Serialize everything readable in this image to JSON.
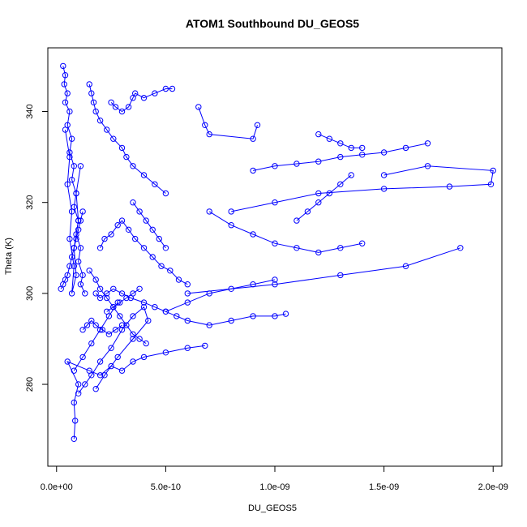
{
  "chart_data": {
    "type": "scatter",
    "title": "ATOM1 Southbound DU_GEOS5",
    "xlabel": "DU_GEOS5",
    "ylabel": "Theta (K)",
    "xlim": [
      -4e-11,
      2.04e-09
    ],
    "ylim": [
      262,
      354
    ],
    "x_ticks": [
      {
        "value": 0,
        "label": "0.0e+00"
      },
      {
        "value": 5e-10,
        "label": "5.0e-10"
      },
      {
        "value": 1e-09,
        "label": "1.0e-09"
      },
      {
        "value": 1.5e-09,
        "label": "1.5e-09"
      },
      {
        "value": 2e-09,
        "label": "2.0e-09"
      }
    ],
    "y_ticks": [
      {
        "value": 280,
        "label": "280"
      },
      {
        "value": 300,
        "label": "300"
      },
      {
        "value": 320,
        "label": "320"
      },
      {
        "value": 340,
        "label": "340"
      }
    ],
    "series_color": "#0000ff",
    "grid": false,
    "series": [
      {
        "x": [
          8e-11,
          8.5e-11,
          8e-11,
          1e-10,
          5e-11,
          1.5e-10,
          2e-10,
          2.5e-10,
          3e-10,
          3.5e-10,
          4e-10,
          5e-10,
          6e-10,
          6.8e-10
        ],
        "y": [
          268,
          272,
          276,
          280,
          285,
          283,
          282,
          284,
          283,
          285,
          286,
          287,
          288,
          288.5
        ]
      },
      {
        "x": [
          1e-10,
          1.3e-10,
          1.6e-10,
          2e-10,
          2.5e-10,
          3e-10,
          3.5e-10,
          4e-10,
          4.2e-10,
          3.5e-10,
          2.8e-10,
          2.2e-10,
          1.8e-10
        ],
        "y": [
          278,
          280,
          282,
          285,
          288,
          292,
          295,
          297,
          294,
          290,
          286,
          282,
          279
        ]
      },
      {
        "x": [
          1.8e-10,
          2e-10,
          2.3e-10,
          2.6e-10,
          3e-10,
          3.4e-10,
          4e-10,
          4.5e-10,
          5e-10,
          5.5e-10,
          6e-10,
          7e-10,
          8e-10,
          9e-10,
          1e-09,
          1.05e-09
        ],
        "y": [
          300,
          299,
          300,
          301,
          300,
          299,
          298,
          297,
          296,
          295,
          294,
          293,
          294,
          295,
          295,
          295.5
        ]
      },
      {
        "x": [
          6e-10,
          1e-09,
          1.3e-09,
          1.6e-09,
          1.85e-09
        ],
        "y": [
          300,
          302,
          304,
          306,
          310
        ]
      },
      {
        "x": [
          8e-10,
          1e-09,
          1.2e-09,
          1.5e-09,
          1.8e-09,
          1.99e-09,
          2e-09,
          1.7e-09,
          1.5e-09
        ],
        "y": [
          318,
          320,
          322,
          323,
          323.5,
          324,
          327,
          328,
          326
        ]
      },
      {
        "x": [
          9e-10,
          1e-09,
          1.1e-09,
          1.2e-09,
          1.3e-09,
          1.4e-09,
          1.5e-09,
          1.6e-09,
          1.7e-09
        ],
        "y": [
          327,
          328,
          328.5,
          329,
          330,
          330.5,
          331,
          332,
          333
        ]
      },
      {
        "x": [
          1.2e-09,
          1.25e-09,
          1.3e-09,
          1.35e-09,
          1.4e-09
        ],
        "y": [
          335,
          334,
          333,
          332,
          332
        ]
      },
      {
        "x": [
          6.5e-10,
          6.8e-10,
          7e-10,
          9e-10,
          9.2e-10
        ],
        "y": [
          341,
          337,
          335,
          334,
          337
        ]
      },
      {
        "x": [
          1.5e-10,
          1.6e-10,
          1.7e-10,
          1.8e-10,
          2e-10,
          2.3e-10,
          2.6e-10,
          3e-10,
          3.2e-10,
          3.5e-10,
          4e-10,
          4.5e-10,
          5e-10
        ],
        "y": [
          346,
          344,
          342,
          340,
          338,
          336,
          334,
          332,
          330,
          328,
          326,
          324,
          322
        ]
      },
      {
        "x": [
          2.5e-10,
          2.7e-10,
          3e-10,
          3.3e-10,
          3.5e-10,
          3.6e-10,
          4e-10,
          4.5e-10,
          5e-10,
          5.3e-10
        ],
        "y": [
          342,
          341,
          340,
          341,
          343,
          344,
          343,
          344,
          345,
          345
        ]
      },
      {
        "x": [
          3e-11,
          4e-11,
          3.5e-11,
          5e-11,
          4e-11,
          6e-11,
          5e-11,
          7e-11,
          6e-11,
          8e-11,
          7e-11,
          9e-11,
          8e-11,
          1e-10,
          9e-11,
          1.1e-10,
          1e-10,
          1.2e-10,
          1.1e-10,
          1.3e-10
        ],
        "y": [
          350,
          348,
          346,
          344,
          342,
          340,
          337,
          334,
          331,
          328,
          325,
          322,
          319,
          316,
          313,
          310,
          307,
          304,
          302,
          300
        ]
      },
      {
        "x": [
          2e-11,
          3e-11,
          4e-11,
          5e-11,
          6e-11,
          7e-11,
          8e-11,
          9e-11,
          1e-10,
          1.1e-10,
          1.2e-10
        ],
        "y": [
          301,
          302,
          303,
          304,
          306,
          308,
          310,
          312,
          314,
          316,
          318
        ]
      },
      {
        "x": [
          4e-11,
          6e-11,
          5e-11,
          7e-11,
          6e-11,
          8e-11,
          7e-11,
          9e-11,
          8e-11,
          1e-10,
          9e-11,
          1.1e-10
        ],
        "y": [
          336,
          330,
          324,
          318,
          312,
          306,
          300,
          304,
          310,
          316,
          322,
          328
        ]
      },
      {
        "x": [
          2e-10,
          2.2e-10,
          2.5e-10,
          2.8e-10,
          3e-10,
          3.3e-10,
          3.6e-10,
          4e-10,
          4.4e-10,
          4.8e-10,
          5.2e-10,
          5.6e-10,
          6e-10
        ],
        "y": [
          310,
          312,
          313,
          315,
          316,
          314,
          312,
          310,
          308,
          306,
          305,
          303,
          302
        ]
      },
      {
        "x": [
          1.5e-10,
          1.8e-10,
          2e-10,
          2.3e-10,
          2.6e-10,
          2.9e-10,
          3.2e-10,
          3.5e-10,
          3.8e-10,
          4.1e-10
        ],
        "y": [
          305,
          303,
          301,
          299,
          297,
          295,
          293,
          291,
          290,
          289
        ]
      },
      {
        "x": [
          1.2e-10,
          1.4e-10,
          1.6e-10,
          1.8e-10,
          2.1e-10,
          2.4e-10,
          2.7e-10,
          3e-10
        ],
        "y": [
          292,
          293,
          294,
          293,
          292,
          291,
          292,
          293
        ]
      },
      {
        "x": [
          7e-10,
          8e-10,
          9e-10,
          1e-09,
          1.1e-09,
          1.2e-09,
          1.3e-09,
          1.4e-09
        ],
        "y": [
          318,
          315,
          313,
          311,
          310,
          309,
          310,
          311
        ]
      },
      {
        "x": [
          5e-10,
          6e-10,
          7e-10,
          8e-10,
          9e-10,
          1e-09
        ],
        "y": [
          296,
          298,
          300,
          301,
          302,
          303
        ]
      },
      {
        "x": [
          1.1e-09,
          1.15e-09,
          1.2e-09,
          1.25e-09,
          1.3e-09,
          1.35e-09
        ],
        "y": [
          316,
          318,
          320,
          322,
          324,
          326
        ]
      },
      {
        "x": [
          3.5e-10,
          3.8e-10,
          4.1e-10,
          4.4e-10,
          4.7e-10,
          5e-10
        ],
        "y": [
          320,
          318,
          316,
          314,
          312,
          310
        ]
      },
      {
        "x": [
          8e-11,
          1.2e-10,
          1.6e-10,
          2e-10,
          2.4e-10,
          2.8e-10
        ],
        "y": [
          283,
          286,
          289,
          292,
          295,
          298
        ]
      },
      {
        "x": [
          2.3e-10,
          2.6e-10,
          2.9e-10,
          3.2e-10,
          3.5e-10,
          3.8e-10
        ],
        "y": [
          296,
          297,
          298,
          299,
          300,
          301
        ]
      }
    ]
  }
}
